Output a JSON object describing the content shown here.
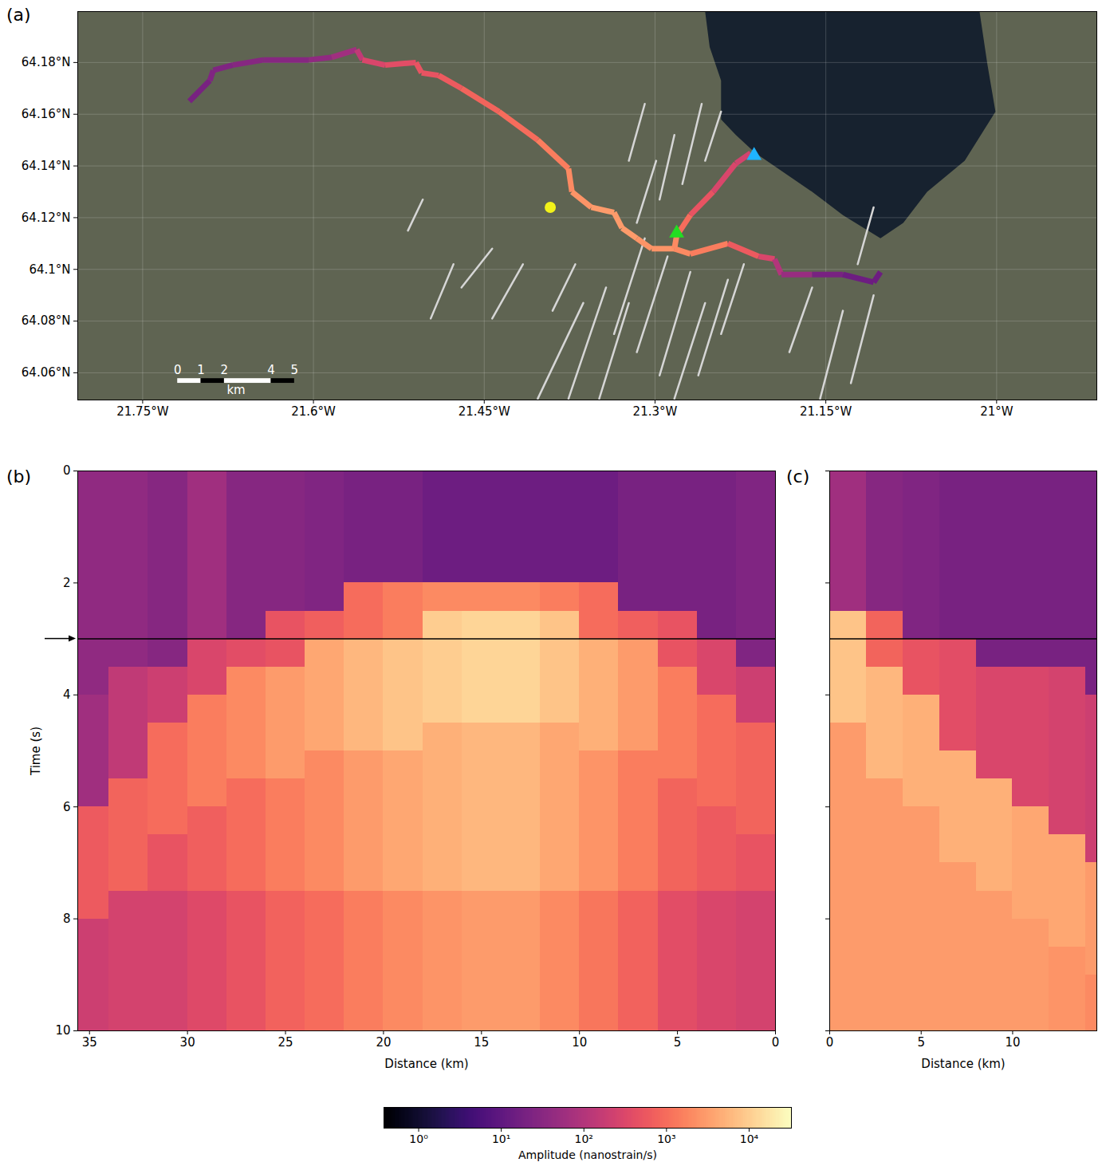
{
  "chart_data": [
    {
      "panel": "(a)",
      "type": "map",
      "xlim": [
        -21.807,
        -20.912
      ],
      "ylim": [
        64.0495,
        64.1997
      ],
      "xticks": [
        {
          "value": -21.75,
          "label": "21.75°W"
        },
        {
          "value": -21.6,
          "label": "21.6°W"
        },
        {
          "value": -21.45,
          "label": "21.45°W"
        },
        {
          "value": -21.3,
          "label": "21.3°W"
        },
        {
          "value": -21.15,
          "label": "21.15°W"
        },
        {
          "value": -21,
          "label": "21°W"
        }
      ],
      "yticks": [
        {
          "value": 64.06,
          "label": "64.06°N"
        },
        {
          "value": 64.08,
          "label": "64.08°N"
        },
        {
          "value": 64.1,
          "label": "64.1°N"
        },
        {
          "value": 64.12,
          "label": "64.12°N"
        },
        {
          "value": 64.14,
          "label": "64.14°N"
        },
        {
          "value": 64.16,
          "label": "64.16°N"
        },
        {
          "value": 64.18,
          "label": "64.18°N"
        }
      ],
      "grid": true,
      "cable": {
        "lon": [
          -21.709,
          -21.691,
          -21.688,
          -21.671,
          -21.644,
          -21.604,
          -21.584,
          -21.562,
          -21.557,
          -21.537,
          -21.51,
          -21.505,
          -21.49,
          -21.47,
          -21.437,
          -21.403,
          -21.376,
          -21.373,
          -21.356,
          -21.336,
          -21.329,
          -21.316,
          -21.303,
          -21.283,
          -21.269,
          -21.236,
          -21.209,
          -21.195,
          -21.189,
          -21.162,
          -21.135,
          -21.108,
          -21.102
        ],
        "lat": [
          64.165,
          64.173,
          64.177,
          64.179,
          64.181,
          64.181,
          64.182,
          64.185,
          64.181,
          64.179,
          64.18,
          64.176,
          64.175,
          64.17,
          64.161,
          64.15,
          64.139,
          64.13,
          64.124,
          64.122,
          64.116,
          64.112,
          64.108,
          64.108,
          64.106,
          64.11,
          64.105,
          64.104,
          64.098,
          64.098,
          64.098,
          64.095,
          64.099
        ],
        "values": [
          20,
          25,
          25,
          30,
          30,
          40,
          60,
          150,
          300,
          400,
          500,
          500,
          600,
          800,
          1000,
          1500,
          2000,
          2500,
          3000,
          3000,
          3000,
          2500,
          2500,
          2000,
          1500,
          600,
          300,
          100,
          50,
          20,
          15,
          15,
          15
        ]
      },
      "branch": {
        "lon": [
          -21.283,
          -21.281,
          -21.269,
          -21.249,
          -21.229,
          -21.216
        ],
        "lat": [
          64.108,
          64.113,
          64.121,
          64.13,
          64.141,
          64.145
        ],
        "values": [
          2000,
          1000,
          500,
          300,
          250,
          200
        ]
      },
      "faults": [
        [
          [
            -21.336,
            64.075
          ],
          [
            -21.309,
            64.112
          ]
        ],
        [
          [
            -21.316,
            64.068
          ],
          [
            -21.289,
            64.105
          ]
        ],
        [
          [
            -21.296,
            64.059
          ],
          [
            -21.269,
            64.099
          ]
        ],
        [
          [
            -21.403,
            64.05
          ],
          [
            -21.363,
            64.087
          ]
        ],
        [
          [
            -21.376,
            64.05
          ],
          [
            -21.343,
            64.093
          ]
        ],
        [
          [
            -21.349,
            64.05
          ],
          [
            -21.323,
            64.087
          ]
        ],
        [
          [
            -21.283,
            64.05
          ],
          [
            -21.256,
            64.087
          ]
        ],
        [
          [
            -21.262,
            64.059
          ],
          [
            -21.236,
            64.096
          ]
        ],
        [
          [
            -21.242,
            64.075
          ],
          [
            -21.222,
            64.102
          ]
        ],
        [
          [
            -21.316,
            64.118
          ],
          [
            -21.299,
            64.142
          ]
        ],
        [
          [
            -21.296,
            64.127
          ],
          [
            -21.283,
            64.152
          ]
        ],
        [
          [
            -21.276,
            64.133
          ],
          [
            -21.259,
            64.164
          ]
        ],
        [
          [
            -21.256,
            64.142
          ],
          [
            -21.242,
            64.161
          ]
        ],
        [
          [
            -21.323,
            64.142
          ],
          [
            -21.309,
            64.164
          ]
        ],
        [
          [
            -21.155,
            64.05
          ],
          [
            -21.135,
            64.084
          ]
        ],
        [
          [
            -21.128,
            64.056
          ],
          [
            -21.108,
            64.09
          ]
        ],
        [
          [
            -21.122,
            64.102
          ],
          [
            -21.108,
            64.124
          ]
        ],
        [
          [
            -21.517,
            64.115
          ],
          [
            -21.504,
            64.127
          ]
        ],
        [
          [
            -21.497,
            64.081
          ],
          [
            -21.477,
            64.102
          ]
        ],
        [
          [
            -21.47,
            64.093
          ],
          [
            -21.443,
            64.108
          ]
        ],
        [
          [
            -21.443,
            64.081
          ],
          [
            -21.416,
            64.102
          ]
        ],
        [
          [
            -21.39,
            64.084
          ],
          [
            -21.37,
            64.102
          ]
        ],
        [
          [
            -21.182,
            64.068
          ],
          [
            -21.162,
            64.093
          ]
        ]
      ],
      "lake": [
        [
          -21.256,
          64.1997
        ],
        [
          -21.015,
          64.1997
        ],
        [
          -21.008,
          64.179
        ],
        [
          -21.001,
          64.161
        ],
        [
          -21.028,
          64.142
        ],
        [
          -21.061,
          64.13
        ],
        [
          -21.082,
          64.118
        ],
        [
          -21.102,
          64.112
        ],
        [
          -21.135,
          64.121
        ],
        [
          -21.162,
          64.13
        ],
        [
          -21.202,
          64.142
        ],
        [
          -21.212,
          64.145
        ],
        [
          -21.229,
          64.152
        ],
        [
          -21.242,
          64.158
        ],
        [
          -21.242,
          64.173
        ],
        [
          -21.252,
          64.186
        ]
      ],
      "points": [
        {
          "lon": -21.392,
          "lat": 64.124,
          "color": "#f2f21a",
          "marker": "circle"
        },
        {
          "lon": -21.281,
          "lat": 64.114,
          "color": "#22dd22",
          "marker": "triangle"
        },
        {
          "lon": -21.213,
          "lat": 64.144,
          "color": "#1fb4ff",
          "marker": "triangle"
        }
      ],
      "scale_bar": {
        "ticks": [
          0,
          1,
          2,
          4,
          5
        ],
        "label": "km"
      }
    },
    {
      "panel": "(b)",
      "type": "heatmap",
      "xlabel": "Distance (km)",
      "ylabel": "Time (s)",
      "xlim": [
        35.6,
        0
      ],
      "ylim": [
        0,
        10
      ],
      "xticks": [
        35,
        30,
        25,
        20,
        15,
        10,
        5,
        0
      ],
      "yticks": [
        0,
        2,
        4,
        6,
        8,
        10
      ],
      "x_edges": [
        36,
        34,
        32,
        30,
        28,
        26,
        24,
        22,
        20,
        18,
        16,
        14,
        12,
        10,
        8,
        6,
        4,
        2,
        0
      ],
      "y_edges": [
        0,
        0.5,
        1,
        1.5,
        2,
        2.5,
        3,
        3.5,
        4,
        4.5,
        5,
        5.5,
        6,
        6.5,
        7,
        7.5,
        8,
        8.5,
        9,
        9.5,
        10
      ],
      "z": [
        [
          40,
          40,
          30,
          60,
          30,
          30,
          25,
          20,
          20,
          15,
          15,
          15,
          15,
          15,
          20,
          20,
          20,
          25
        ],
        [
          40,
          40,
          30,
          60,
          30,
          30,
          25,
          20,
          20,
          15,
          15,
          15,
          15,
          15,
          20,
          20,
          20,
          25
        ],
        [
          40,
          40,
          30,
          60,
          30,
          30,
          25,
          20,
          20,
          15,
          15,
          15,
          15,
          15,
          20,
          20,
          20,
          25
        ],
        [
          40,
          40,
          30,
          60,
          30,
          30,
          25,
          20,
          20,
          15,
          15,
          15,
          15,
          15,
          20,
          20,
          20,
          25
        ],
        [
          40,
          40,
          30,
          60,
          30,
          30,
          25,
          1000,
          1500,
          2000,
          2000,
          2000,
          1500,
          1000,
          20,
          20,
          20,
          25
        ],
        [
          40,
          40,
          30,
          60,
          30,
          500,
          700,
          1000,
          1500,
          10000,
          12000,
          12000,
          8000,
          1000,
          700,
          500,
          20,
          25
        ],
        [
          40,
          40,
          30,
          300,
          400,
          500,
          4000,
          6000,
          8000,
          10000,
          12000,
          12000,
          8000,
          5000,
          3000,
          500,
          300,
          25
        ],
        [
          40,
          150,
          200,
          300,
          2000,
          3000,
          4000,
          6000,
          8000,
          10000,
          12000,
          12000,
          8000,
          5000,
          3000,
          1500,
          300,
          200
        ],
        [
          60,
          150,
          200,
          1500,
          2000,
          3000,
          4000,
          6000,
          8000,
          10000,
          12000,
          12000,
          8000,
          5000,
          3000,
          1500,
          1000,
          200
        ],
        [
          60,
          150,
          1000,
          1500,
          2000,
          3000,
          4000,
          6000,
          8000,
          5000,
          6000,
          6000,
          4000,
          5000,
          3000,
          1500,
          1000,
          800
        ],
        [
          60,
          150,
          1000,
          1500,
          2000,
          3000,
          2000,
          3000,
          4000,
          5000,
          6000,
          6000,
          4000,
          2500,
          1500,
          1500,
          1000,
          800
        ],
        [
          60,
          800,
          1000,
          1500,
          1000,
          1500,
          2000,
          3000,
          4000,
          5000,
          6000,
          6000,
          4000,
          2500,
          1500,
          800,
          1000,
          800
        ],
        [
          600,
          800,
          1000,
          700,
          1000,
          1500,
          2000,
          3000,
          4000,
          5000,
          6000,
          6000,
          4000,
          2500,
          1500,
          800,
          600,
          800
        ],
        [
          600,
          800,
          500,
          700,
          1000,
          1500,
          2000,
          3000,
          4000,
          5000,
          6000,
          6000,
          4000,
          2500,
          1500,
          800,
          600,
          500
        ],
        [
          600,
          800,
          500,
          700,
          1000,
          1500,
          2000,
          3000,
          4000,
          5000,
          6000,
          6000,
          4000,
          2500,
          1500,
          800,
          600,
          500
        ],
        [
          600,
          250,
          250,
          350,
          500,
          750,
          1000,
          1500,
          2000,
          2500,
          3000,
          3000,
          2000,
          1250,
          750,
          400,
          300,
          250
        ],
        [
          200,
          250,
          250,
          350,
          500,
          750,
          1000,
          1500,
          2000,
          2500,
          3000,
          3000,
          2000,
          1250,
          750,
          400,
          300,
          250
        ],
        [
          200,
          250,
          250,
          350,
          500,
          750,
          1000,
          1500,
          2000,
          2500,
          3000,
          3000,
          2000,
          1250,
          750,
          400,
          300,
          250
        ],
        [
          200,
          250,
          250,
          350,
          500,
          750,
          1000,
          1500,
          2000,
          2500,
          3000,
          3000,
          2000,
          1250,
          750,
          400,
          300,
          250
        ],
        [
          200,
          250,
          250,
          350,
          500,
          750,
          1000,
          1500,
          2000,
          2500,
          3000,
          3000,
          2000,
          1250,
          750,
          400,
          300,
          250
        ]
      ],
      "hline": 3
    },
    {
      "panel": "(c)",
      "type": "heatmap",
      "xlabel": "Distance (km)",
      "xlim": [
        0,
        14.6
      ],
      "ylim": [
        0,
        10
      ],
      "xticks": [
        0,
        5,
        10
      ],
      "yticks": [
        0,
        2,
        4,
        6,
        8,
        10
      ],
      "tick_labels": "x",
      "x_edges": [
        0,
        2,
        4,
        6,
        8,
        10,
        12,
        14,
        16
      ],
      "y_edges": [
        0,
        0.5,
        1,
        1.5,
        2,
        2.5,
        3,
        3.5,
        4,
        4.5,
        5,
        5.5,
        6,
        6.5,
        7,
        7.5,
        8,
        8.5,
        9,
        9.5,
        10
      ],
      "z": [
        [
          60,
          30,
          25,
          20,
          20,
          20,
          20,
          20
        ],
        [
          60,
          30,
          25,
          20,
          20,
          20,
          20,
          20
        ],
        [
          60,
          30,
          25,
          20,
          20,
          20,
          20,
          20
        ],
        [
          60,
          30,
          25,
          20,
          20,
          20,
          20,
          20
        ],
        [
          60,
          30,
          25,
          20,
          20,
          20,
          20,
          20
        ],
        [
          8000,
          800,
          25,
          20,
          20,
          20,
          20,
          20
        ],
        [
          8000,
          800,
          500,
          400,
          20,
          20,
          20,
          20
        ],
        [
          8000,
          6000,
          500,
          400,
          300,
          300,
          250,
          20
        ],
        [
          8000,
          6000,
          5000,
          400,
          300,
          300,
          250,
          200
        ],
        [
          3000,
          6000,
          5000,
          400,
          300,
          300,
          250,
          200
        ],
        [
          3000,
          6000,
          5000,
          5000,
          300,
          300,
          250,
          200
        ],
        [
          3000,
          3000,
          5000,
          5000,
          5000,
          300,
          250,
          200
        ],
        [
          3000,
          3000,
          3000,
          5000,
          5000,
          4000,
          250,
          200
        ],
        [
          3000,
          3000,
          3000,
          5000,
          5000,
          4000,
          4000,
          200
        ],
        [
          3000,
          3000,
          3000,
          3000,
          5000,
          4000,
          4000,
          3000
        ],
        [
          3000,
          3000,
          3000,
          3000,
          3000,
          4000,
          4000,
          3000
        ],
        [
          3000,
          3000,
          3000,
          3000,
          3000,
          3000,
          4000,
          3000
        ],
        [
          3000,
          3000,
          3000,
          3000,
          3000,
          3000,
          2500,
          3000
        ],
        [
          3000,
          3000,
          3000,
          3000,
          3000,
          3000,
          2500,
          2000
        ],
        [
          3000,
          3000,
          3000,
          3000,
          3000,
          3000,
          2500,
          2000
        ]
      ],
      "hline": 3
    },
    {
      "type": "colorbar",
      "xlabel": "Amplitude (nanostrain/s)",
      "log": true,
      "color": "magma",
      "xlim": [
        0.38,
        32500
      ],
      "xticks": [
        {
          "value": 1,
          "label": "10⁰"
        },
        {
          "value": 10,
          "label": "10¹"
        },
        {
          "value": 100,
          "label": "10²"
        },
        {
          "value": 1000,
          "label": "10³"
        },
        {
          "value": 10000,
          "label": "10⁴"
        }
      ]
    }
  ]
}
